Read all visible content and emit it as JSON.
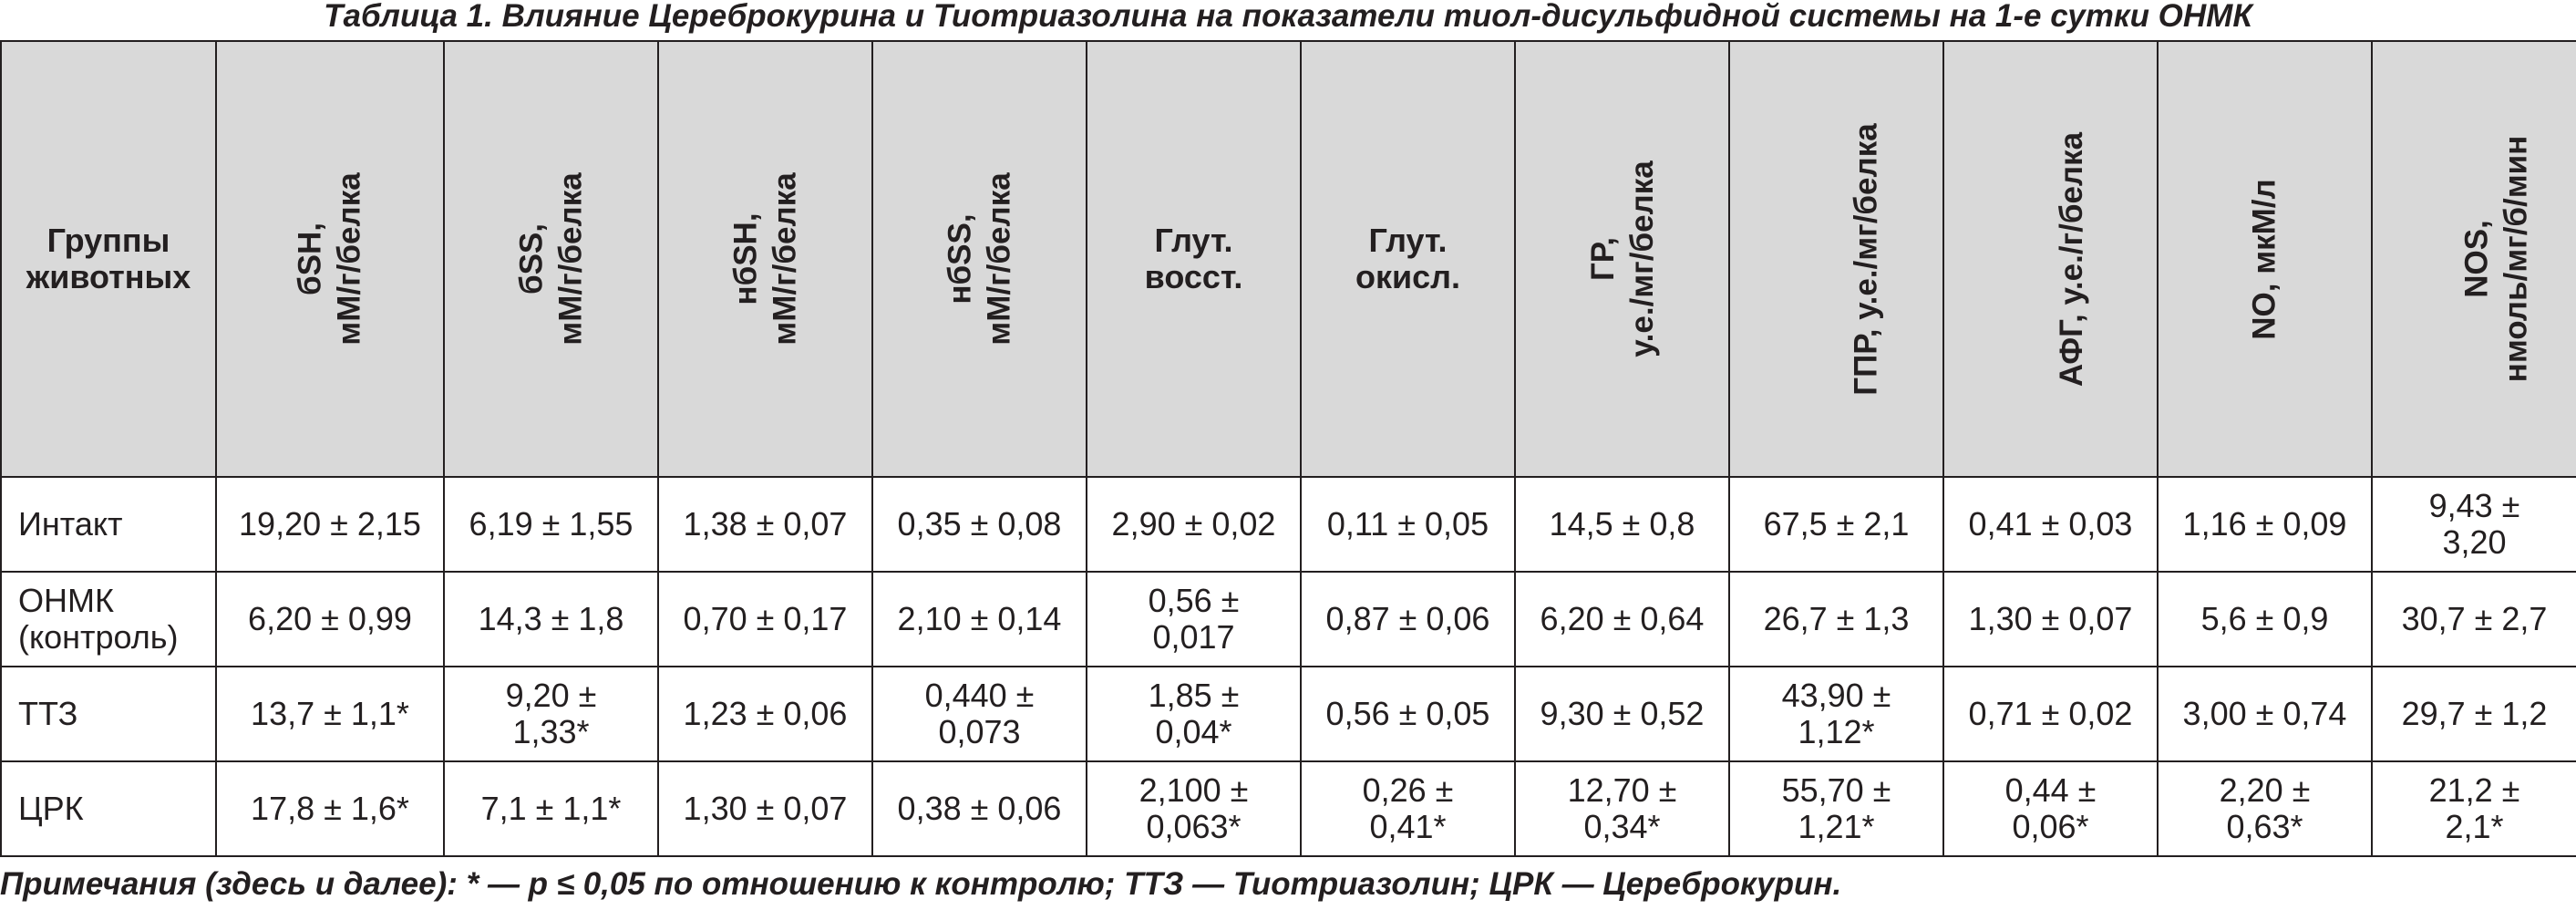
{
  "caption": "Таблица 1. Влияние Цереброкурина и Тиотриазолина на показатели тиол-дисульфидной системы на 1-е сутки ОНМК",
  "table": {
    "group_header": [
      "Группы",
      "животных"
    ],
    "columns": [
      {
        "lines": [
          "бSH,",
          "мМ/г/белка"
        ],
        "rotated": true
      },
      {
        "lines": [
          "бSS,",
          "мМ/г/белка"
        ],
        "rotated": true
      },
      {
        "lines": [
          "нбSH,",
          "мМ/г/белка"
        ],
        "rotated": true
      },
      {
        "lines": [
          "нбSS,",
          "мМ/г/белка"
        ],
        "rotated": true
      },
      {
        "lines": [
          "Глут.",
          "восст."
        ],
        "rotated": false
      },
      {
        "lines": [
          "Глут.",
          "окисл."
        ],
        "rotated": false
      },
      {
        "lines": [
          "ГР,",
          "у.е./мг/белка"
        ],
        "rotated": true
      },
      {
        "lines": [
          "ГПР, у.е./мг/белка"
        ],
        "rotated": true
      },
      {
        "lines": [
          "АФГ, у.е./г/белка"
        ],
        "rotated": true
      },
      {
        "lines": [
          "NO, мкМ/л"
        ],
        "rotated": true
      },
      {
        "lines": [
          "NOS,",
          "нмоль/мг/б/мин"
        ],
        "rotated": true
      }
    ],
    "rows": [
      {
        "group": [
          "Интакт"
        ],
        "cells": [
          [
            "19,20 ± 2,15"
          ],
          [
            "6,19 ± 1,55"
          ],
          [
            "1,38 ± 0,07"
          ],
          [
            "0,35 ± 0,08"
          ],
          [
            "2,90 ± 0,02"
          ],
          [
            "0,11 ± 0,05"
          ],
          [
            "14,5 ± 0,8"
          ],
          [
            "67,5 ± 2,1"
          ],
          [
            "0,41 ± 0,03"
          ],
          [
            "1,16 ± 0,09"
          ],
          [
            "9,43 ±",
            "3,20"
          ]
        ]
      },
      {
        "group": [
          "ОНМК",
          "(контроль)"
        ],
        "cells": [
          [
            "6,20 ± 0,99"
          ],
          [
            "14,3 ± 1,8"
          ],
          [
            "0,70 ± 0,17"
          ],
          [
            "2,10 ± 0,14"
          ],
          [
            "0,56 ±",
            "0,017"
          ],
          [
            "0,87 ± 0,06"
          ],
          [
            "6,20 ± 0,64"
          ],
          [
            "26,7 ± 1,3"
          ],
          [
            "1,30 ± 0,07"
          ],
          [
            "5,6 ± 0,9"
          ],
          [
            "30,7 ± 2,7"
          ]
        ]
      },
      {
        "group": [
          "ТТЗ"
        ],
        "cells": [
          [
            "13,7 ± 1,1*"
          ],
          [
            "9,20 ±",
            "1,33*"
          ],
          [
            "1,23 ± 0,06"
          ],
          [
            "0,440 ±",
            "0,073"
          ],
          [
            "1,85 ±",
            "0,04*"
          ],
          [
            "0,56 ± 0,05"
          ],
          [
            "9,30 ± 0,52"
          ],
          [
            "43,90 ±",
            "1,12*"
          ],
          [
            "0,71 ± 0,02"
          ],
          [
            "3,00 ± 0,74"
          ],
          [
            "29,7 ± 1,2"
          ]
        ]
      },
      {
        "group": [
          "ЦРК"
        ],
        "cells": [
          [
            "17,8 ± 1,6*"
          ],
          [
            "7,1 ± 1,1*"
          ],
          [
            "1,30 ± 0,07"
          ],
          [
            "0,38 ± 0,06"
          ],
          [
            "2,100 ±",
            "0,063*"
          ],
          [
            "0,26 ±",
            "0,41*"
          ],
          [
            "12,70 ±",
            "0,34*"
          ],
          [
            "55,70 ±",
            "1,21*"
          ],
          [
            "0,44 ±",
            "0,06*"
          ],
          [
            "2,20 ±",
            "0,63*"
          ],
          [
            "21,2 ±",
            "2,1*"
          ]
        ]
      }
    ]
  },
  "note": "Примечания (здесь и далее): * — p ≤ 0,05 по отношению к контролю; ТТЗ — Тиотриазолин; ЦРК — Цереброкурин.",
  "colors": {
    "header_background": "#d9d9d9",
    "border": "#231f20",
    "text": "#231f20"
  }
}
